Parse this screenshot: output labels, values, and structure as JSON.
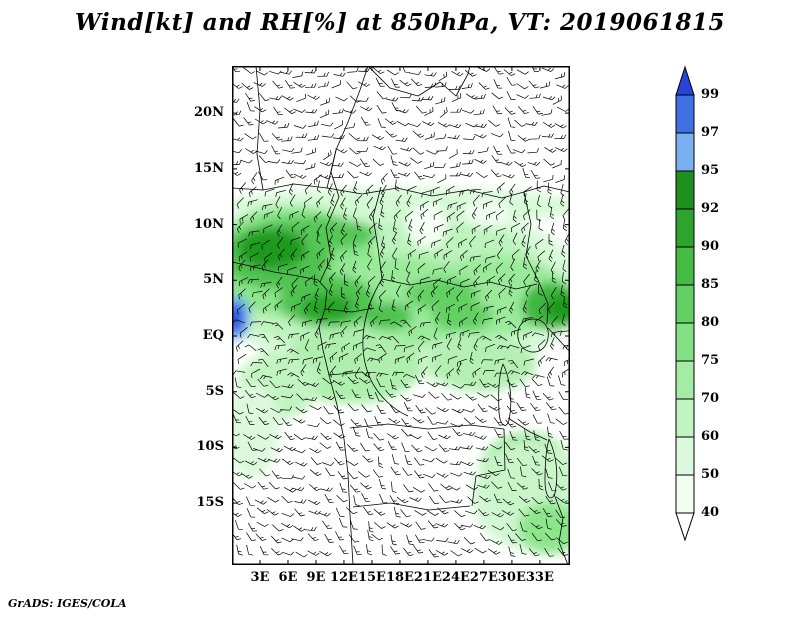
{
  "title": "Wind[kt] and RH[%] at 850hPa, VT: 2019061815",
  "footer_credit": "GrADS: IGES/COLA",
  "axes": {
    "y_ticks": [
      "20N",
      "15N",
      "10N",
      "5N",
      "EQ",
      "5S",
      "10S",
      "15S"
    ],
    "y_lats": [
      20,
      15,
      10,
      5,
      0,
      -5,
      -10,
      -15
    ],
    "x_ticks": [
      "3E",
      "6E",
      "9E",
      "12E",
      "15E",
      "18E",
      "21E",
      "24E",
      "27E",
      "30E",
      "33E"
    ],
    "x_lons": [
      3,
      6,
      9,
      12,
      15,
      18,
      21,
      24,
      27,
      30,
      33
    ]
  },
  "colorbar": {
    "labels": [
      "99",
      "97",
      "95",
      "92",
      "90",
      "85",
      "80",
      "75",
      "70",
      "60",
      "50",
      "40"
    ],
    "top_arrow_color": "#2746d8",
    "bottom_arrow_color": "#ffffff",
    "segment_colors_top_to_bottom": [
      "#3f6fe0",
      "#7ab0f0",
      "#1e8e1e",
      "#2ea42e",
      "#44bc44",
      "#63d063",
      "#85e085",
      "#a4eca4",
      "#c2f4c2",
      "#ddf9dd",
      "#f1fdf1"
    ],
    "outline_color": "#000000"
  },
  "chart_data": {
    "type": "heatmap",
    "title": "Wind[kt] and RH[%] at 850hPa, VT: 2019061815",
    "field": "relative humidity",
    "units": "%",
    "overlay": "wind barbs (kt)",
    "level": "850 hPa",
    "valid_time_label": "2019061815",
    "x": {
      "axis": "longitude (deg E)",
      "range": [
        0,
        36
      ],
      "tick_labels": [
        "3E",
        "6E",
        "9E",
        "12E",
        "15E",
        "18E",
        "21E",
        "24E",
        "27E",
        "30E",
        "33E"
      ]
    },
    "y": {
      "axis": "latitude",
      "range": [
        -20.5,
        24.2
      ],
      "tick_labels": [
        "20N",
        "15N",
        "10N",
        "5N",
        "EQ",
        "5S",
        "10S",
        "15S"
      ]
    },
    "shading_levels_percent": [
      40,
      50,
      60,
      70,
      75,
      80,
      85,
      90,
      92,
      95,
      97,
      99
    ],
    "legend_position": "right",
    "grid": false,
    "notable_features": [
      "Broad moist band (RH 70-90%) spanning the map width between about 8S and 13N",
      "RH maxima above 90% over 3N-10N west of 15E and near 32-35E around the equator",
      "Small RH > 95% (blue) patch on the Atlantic coast near 0-2N, 0-1E",
      "Dry air (RH < 50%) north of about 14N and over much of 10S-18S interior",
      "Green RH 70-85% patches in the far southeast near 30-35E, 10S-17S"
    ]
  },
  "map_render": {
    "field_blobs": [
      [
        169,
        225,
        185,
        90,
        "#d8f9d8",
        1
      ],
      [
        150,
        215,
        165,
        75,
        "#bdf3bd",
        1
      ],
      [
        169,
        140,
        180,
        18,
        "#d2f8d2",
        0.9
      ],
      [
        60,
        195,
        85,
        55,
        "#8ce68c",
        1
      ],
      [
        165,
        235,
        85,
        45,
        "#9aea9a",
        1
      ],
      [
        265,
        230,
        75,
        40,
        "#9aea9a",
        1
      ],
      [
        45,
        190,
        55,
        33,
        "#4fc24f",
        1
      ],
      [
        95,
        235,
        48,
        26,
        "#4fc24f",
        1
      ],
      [
        80,
        168,
        65,
        17,
        "#57c657",
        1
      ],
      [
        40,
        183,
        34,
        20,
        "#1e9a1e",
        1
      ],
      [
        95,
        242,
        26,
        14,
        "#28a428",
        1
      ],
      [
        155,
        250,
        25,
        14,
        "#4fc24f",
        1
      ],
      [
        210,
        228,
        36,
        16,
        "#63d063",
        1
      ],
      [
        230,
        250,
        30,
        16,
        "#63d063",
        1
      ],
      [
        320,
        240,
        30,
        24,
        "#3eb83e",
        1
      ],
      [
        330,
        242,
        16,
        14,
        "#1e9a1e",
        1
      ],
      [
        120,
        300,
        70,
        38,
        "#aeefae",
        1
      ],
      [
        45,
        320,
        40,
        34,
        "#c2f4c2",
        1
      ],
      [
        250,
        298,
        55,
        28,
        "#b4f0b4",
        1
      ],
      [
        295,
        408,
        48,
        42,
        "#9ee99e",
        1
      ],
      [
        300,
        430,
        60,
        55,
        "#cdf6cd",
        0.9
      ],
      [
        318,
        462,
        32,
        26,
        "#8ce68c",
        1
      ],
      [
        20,
        365,
        28,
        48,
        "#ddf9dd",
        1
      ],
      [
        195,
        160,
        20,
        22,
        "#ffffff",
        0.85
      ],
      [
        255,
        148,
        24,
        14,
        "#ffffff",
        0.7
      ],
      [
        5,
        252,
        13,
        22,
        "#6aa8f2",
        1
      ],
      [
        3,
        252,
        8,
        15,
        "#2746d8",
        1
      ]
    ],
    "border_paths": [
      "M0,196 L18,200 L42,206 L66,210 L86,214 L95,224 L93,243 L87,261 L91,284 L97,309 L105,339 L112,373 L116,408 L118,448 L121,499",
      "M88,216 L99,192 L94,162 L107,131 L99,106 L104,84",
      "M24,0 L28,44 L25,88 L31,124",
      "M0,122 L31,124 L62,118 L95,122 L104,84 L116,56 L128,24 L136,0",
      "M136,0 L158,22 L186,30 L208,16 L224,30 L236,8 L238,0",
      "M95,122 L130,128 L165,122 L200,130 L236,124 L270,132 L292,126 L312,120 L338,126",
      "M150,213 L178,219 L205,214 L232,221 L258,216 L284,223 L305,218",
      "M150,213 L146,182 L141,151 L149,121",
      "M150,213 C132,242 124,280 138,312 C146,330 162,344 176,350",
      "M118,362 L156,358 L196,363 L238,359 L272,363",
      "M272,363 L273,404 L244,410 L240,440",
      "M292,126 L299,158 L294,190 L306,214",
      "M306,214 L316,238 L315,258",
      "M316,262 L338,286",
      "M121,441 L158,437 L197,444 L238,440",
      "M276,352 L298,366 L315,374",
      "M322,428 L331,452 L327,476 L336,499",
      "M93,243 L120,246 L142,242",
      "M97,309 L130,306 L138,312"
    ],
    "lake_paths": [
      "M295,254 C309,250 318,259 316,272 C314,286 300,290 291,282 C283,274 284,258 295,254 Z",
      "M271,298 C278,312 281,334 277,354 C275,363 268,361 267,346 C266,324 267,308 271,298 Z",
      "M317,373 C324,388 327,408 323,427 C320,436 313,433 313,414 C313,396 314,384 317,373 Z"
    ],
    "barbs": {
      "seed": 7,
      "spacing": 13,
      "staff_len": 9.5,
      "color": "#000000"
    }
  }
}
